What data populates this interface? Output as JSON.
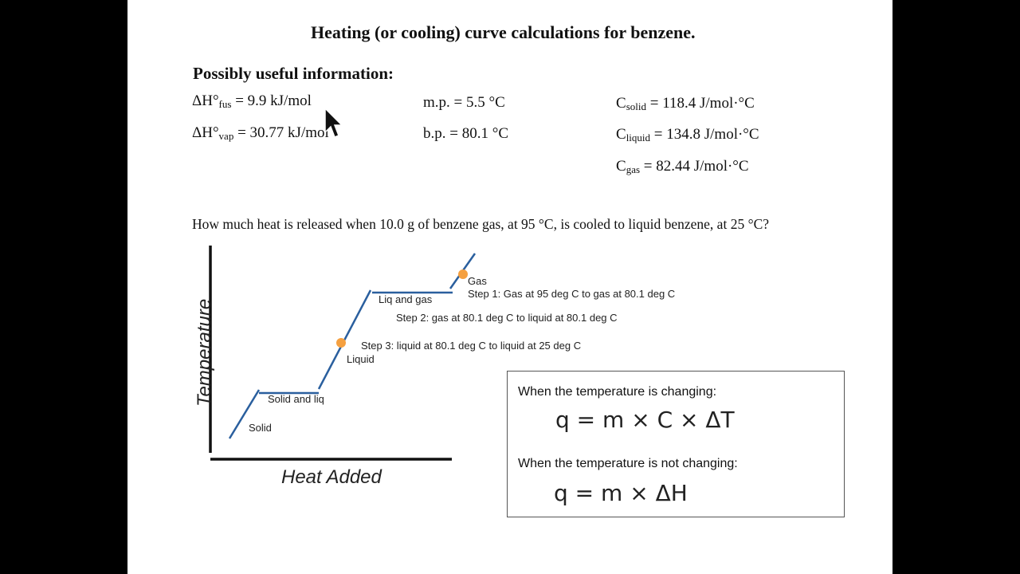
{
  "document": {
    "title": "Heating (or cooling) curve calculations for benzene.",
    "info_heading": "Possibly useful information:",
    "properties": {
      "dh_fus": {
        "prefix": "ΔH°",
        "sub": "fus",
        "value": " = 9.9 kJ/mol"
      },
      "dh_vap": {
        "prefix": "ΔH°",
        "sub": "vap",
        "value": " = 30.77 kJ/mol"
      },
      "mp": "m.p. = 5.5 °C",
      "bp": "b.p. = 80.1 °C",
      "c_solid": {
        "prefix": "C",
        "sub": "solid",
        "value": " = 118.4 J/mol·°C"
      },
      "c_liquid": {
        "prefix": "C",
        "sub": "liquid",
        "value": " = 134.8 J/mol·°C"
      },
      "c_gas": {
        "prefix": "C",
        "sub": "gas",
        "value": " = 82.44 J/mol·°C"
      }
    },
    "question": "How much heat is released when 10.0 g of benzene gas, at 95 °C, is cooled to liquid benzene, at 25 °C?"
  },
  "diagram": {
    "y_axis_label": "Temperature",
    "x_axis_label": "Heat Added",
    "segment_labels": {
      "solid": "Solid",
      "solid_liq": "Solid and liq",
      "liquid": "Liquid",
      "liq_gas": "Liq and gas",
      "gas": "Gas"
    },
    "steps": [
      "Step 1: Gas at 95 deg C to gas at 80.1 deg C",
      "Step 2: gas at 80.1 deg C to liquid at 80.1 deg C",
      "Step 3: liquid at 80.1 deg C to liquid at 25 deg C"
    ],
    "line_color": "#2a5f9e",
    "marker_color": "#f5a040"
  },
  "formula_box": {
    "changing_label": "When the temperature is changing:",
    "changing_formula": "q = m × C × ΔT",
    "not_changing_label": "When the temperature is not changing:",
    "not_changing_formula": "q = m × ΔH"
  }
}
